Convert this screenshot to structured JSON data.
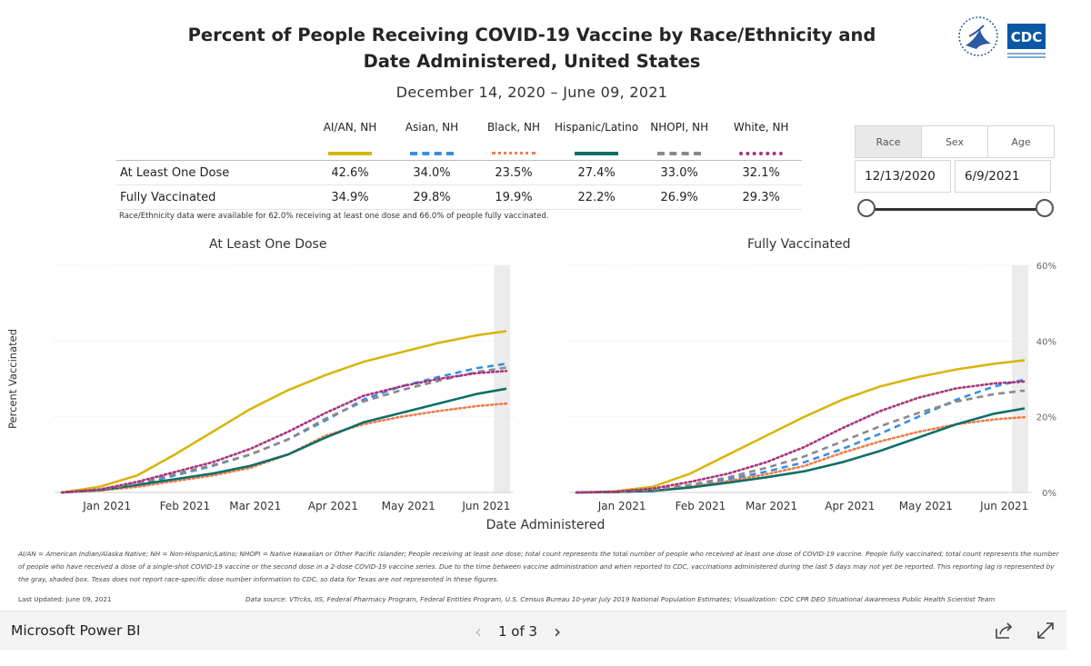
{
  "header": {
    "title_line1": "Percent of People Receiving COVID-19 Vaccine by Race/Ethnicity and",
    "title_line2": "Date Administered, United States",
    "date_range": "December 14, 2020 – June 09, 2021",
    "logo_text": "CDC"
  },
  "summary_table": {
    "columns": [
      "AI/AN, NH",
      "Asian, NH",
      "Black, NH",
      "Hispanic/Latino",
      "NHOPI, NH",
      "White, NH"
    ],
    "rows": [
      {
        "label": "At Least One Dose",
        "values": [
          "42.6%",
          "34.0%",
          "23.5%",
          "27.4%",
          "33.0%",
          "32.1%"
        ]
      },
      {
        "label": "Fully Vaccinated",
        "values": [
          "34.9%",
          "29.8%",
          "19.9%",
          "22.2%",
          "26.9%",
          "29.3%"
        ]
      }
    ],
    "note": "Race/Ethnicity data were available for 62.0% receiving at least one dose and 66.0% of people fully vaccinated."
  },
  "filters": {
    "tabs": [
      "Race",
      "Sex",
      "Age"
    ],
    "active_tab": "Race",
    "start_date": "12/13/2020",
    "end_date": "6/9/2021"
  },
  "colors": {
    "AI/AN, NH": "#d9b50f",
    "Asian, NH": "#3590e8",
    "Black, NH": "#ef7d4b",
    "Hispanic/Latino": "#0e6f68",
    "NHOPI, NH": "#8a8a8a",
    "White, NH": "#a8347e"
  },
  "chart_data": [
    {
      "type": "line",
      "title": "At Least One Dose",
      "xlabel": "Date Administered",
      "ylabel": "Percent Vaccinated",
      "x_ticks": [
        "Jan 2021",
        "Feb 2021",
        "Mar 2021",
        "Apr 2021",
        "May 2021",
        "Jun 2021"
      ],
      "x": [
        "2020-12-14",
        "2020-12-29",
        "2021-01-13",
        "2021-01-28",
        "2021-02-12",
        "2021-02-27",
        "2021-03-14",
        "2021-03-29",
        "2021-04-13",
        "2021-04-28",
        "2021-05-13",
        "2021-05-28",
        "2021-06-09"
      ],
      "ylim": [
        0,
        60
      ],
      "shaded_region": [
        "2021-06-04",
        "2021-06-09"
      ],
      "series": [
        {
          "name": "AI/AN, NH",
          "style": "solid",
          "values": [
            0,
            1.5,
            4.5,
            10,
            16,
            22,
            27,
            31,
            34.5,
            37,
            39.5,
            41.5,
            42.6
          ]
        },
        {
          "name": "Asian, NH",
          "style": "dashed",
          "values": [
            0,
            0.6,
            2,
            4.5,
            7,
            10,
            14,
            19,
            24.5,
            28,
            30.5,
            32.8,
            34.0
          ]
        },
        {
          "name": "Black, NH",
          "style": "dotted",
          "values": [
            0,
            0.5,
            1.5,
            3,
            4.5,
            6.5,
            10,
            15,
            18,
            20,
            21.5,
            22.8,
            23.5
          ]
        },
        {
          "name": "Hispanic/Latino",
          "style": "solid",
          "values": [
            0,
            0.6,
            2,
            3.5,
            5,
            7,
            10,
            14.5,
            18.5,
            21,
            23.5,
            26,
            27.4
          ]
        },
        {
          "name": "NHOPI, NH",
          "style": "dashed",
          "values": [
            0,
            0.7,
            2.4,
            4.8,
            7.2,
            10,
            14,
            19.5,
            24,
            27,
            29.5,
            31.8,
            33.0
          ]
        },
        {
          "name": "White, NH",
          "style": "dotted",
          "values": [
            0,
            0.8,
            2.8,
            5.4,
            8,
            11.5,
            16,
            21,
            25.5,
            28,
            30,
            31.5,
            32.1
          ]
        }
      ]
    },
    {
      "type": "line",
      "title": "Fully Vaccinated",
      "xlabel": "Date Administered",
      "ylabel": "Percent Vaccinated",
      "x_ticks": [
        "Jan 2021",
        "Feb 2021",
        "Mar 2021",
        "Apr 2021",
        "May 2021",
        "Jun 2021"
      ],
      "y_ticks": [
        "0%",
        "20%",
        "40%",
        "60%"
      ],
      "x": [
        "2020-12-14",
        "2020-12-29",
        "2021-01-13",
        "2021-01-28",
        "2021-02-12",
        "2021-02-27",
        "2021-03-14",
        "2021-03-29",
        "2021-04-13",
        "2021-04-28",
        "2021-05-13",
        "2021-05-28",
        "2021-06-09"
      ],
      "ylim": [
        0,
        60
      ],
      "shaded_region": [
        "2021-06-04",
        "2021-06-09"
      ],
      "series": [
        {
          "name": "AI/AN, NH",
          "style": "solid",
          "values": [
            0,
            0.3,
            1.5,
            5,
            10,
            15,
            20,
            24.5,
            28,
            30.5,
            32.5,
            34,
            34.9
          ]
        },
        {
          "name": "Asian, NH",
          "style": "dashed",
          "values": [
            0,
            0.1,
            0.6,
            1.8,
            3.5,
            5.5,
            8,
            11.5,
            15.5,
            20,
            24.5,
            28,
            29.8
          ]
        },
        {
          "name": "Black, NH",
          "style": "dotted",
          "values": [
            0,
            0.1,
            0.5,
            1.5,
            3,
            4.8,
            7,
            10.5,
            13.5,
            16,
            18,
            19.3,
            19.9
          ]
        },
        {
          "name": "Hispanic/Latino",
          "style": "solid",
          "values": [
            0,
            0.1,
            0.4,
            1.3,
            2.6,
            4,
            5.6,
            8,
            11,
            14.5,
            18,
            20.8,
            22.2
          ]
        },
        {
          "name": "NHOPI, NH",
          "style": "dashed",
          "values": [
            0,
            0.1,
            0.7,
            2,
            4,
            6.5,
            9.5,
            13.5,
            17.5,
            21,
            24,
            26,
            26.9
          ]
        },
        {
          "name": "White, NH",
          "style": "dotted",
          "values": [
            0,
            0.2,
            1,
            2.8,
            5,
            8,
            12,
            17,
            21.5,
            25,
            27.5,
            28.8,
            29.3
          ]
        }
      ]
    }
  ],
  "footnote": "AI/AN = American Indian/Alaska Native; NH = Non-Hispanic/Latino; NHOPI = Native Hawaiian or Other Pacific Islander; People receiving at least one dose; total count represents the total number of people who received at least one dose of COVID-19 vaccine. People fully vaccinated; total count represents the number of people who have received a dose of a single-shot COVID-19 vaccine or the second dose in a 2-dose COVID-19 vaccine series.  Due to the time between vaccine administration and when reported to CDC, vaccinations administered during the last 5 days may not yet be reported. This reporting lag is represented by the gray, shaded box. Texas does not report race-specific dose number information to CDC, so data for Texas are not represented in these figures.",
  "last_updated": "Last Updated: June 09, 2021",
  "data_source": "Data source: VTrcks, IIS, Federal Pharmacy Program, Federal Entities Program, U.S. Census Bureau 10-year July 2019 National Population Estimates; Visualization: CDC CPR DEO Situational Awareness Public Health Scientist Team",
  "footer": {
    "brand": "Microsoft Power BI",
    "page_indicator": "1 of 3"
  }
}
